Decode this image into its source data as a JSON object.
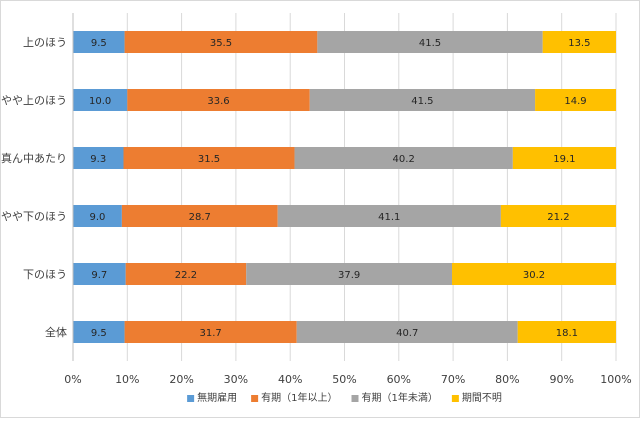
{
  "chart_data": {
    "type": "bar",
    "orientation": "horizontal",
    "stacked": "percent",
    "title": "",
    "xlabel": "",
    "ylabel": "",
    "xlim": [
      0,
      100
    ],
    "x_ticks": [
      "0%",
      "10%",
      "20%",
      "30%",
      "40%",
      "50%",
      "60%",
      "70%",
      "80%",
      "90%",
      "100%"
    ],
    "grid": "vertical",
    "legend_position": "bottom",
    "categories": [
      "上のほう",
      "やや上のほう",
      "真ん中あたり",
      "やや下のほう",
      "下のほう",
      "全体"
    ],
    "series": [
      {
        "name": "無期雇用",
        "color": "#5b9bd5",
        "values": [
          9.5,
          10.0,
          9.3,
          9.0,
          9.7,
          9.5
        ],
        "labels": [
          "9.5",
          "10.0",
          "9.3",
          "9.0",
          "9.7",
          "9.5"
        ]
      },
      {
        "name": "有期（1年以上）",
        "color": "#ed7d31",
        "values": [
          35.5,
          33.6,
          31.5,
          28.7,
          22.2,
          31.7
        ],
        "labels": [
          "35.5",
          "33.6",
          "31.5",
          "28.7",
          "22.2",
          "31.7"
        ]
      },
      {
        "name": "有期（1年未満）",
        "color": "#a5a5a5",
        "values": [
          41.5,
          41.5,
          40.2,
          41.1,
          37.9,
          40.7
        ],
        "labels": [
          "41.5",
          "41.5",
          "40.2",
          "41.1",
          "37.9",
          "40.7"
        ]
      },
      {
        "name": "期間不明",
        "color": "#ffc000",
        "values": [
          13.5,
          14.9,
          19.1,
          21.2,
          30.2,
          18.1
        ],
        "labels": [
          "13.5",
          "14.9",
          "19.1",
          "21.2",
          "30.2",
          "18.1"
        ]
      }
    ]
  }
}
